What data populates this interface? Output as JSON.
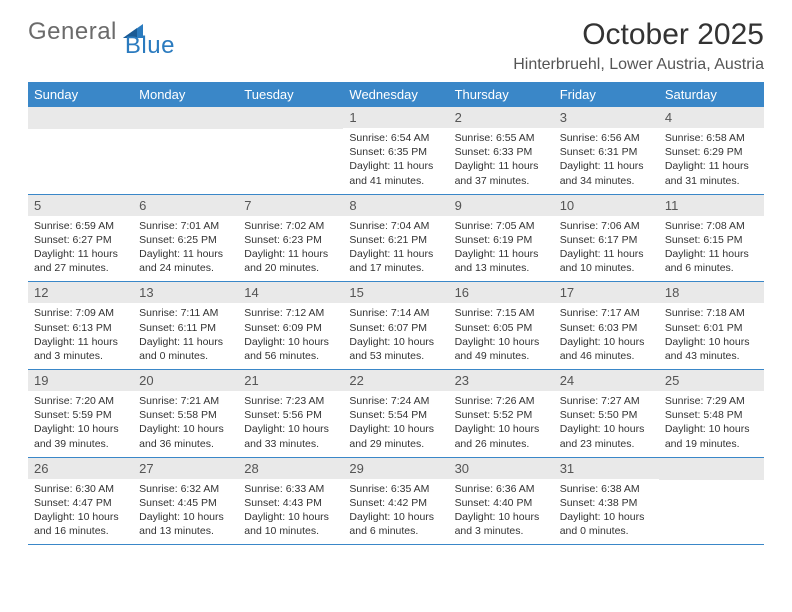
{
  "brand": {
    "part1": "General",
    "part2": "Blue"
  },
  "title": "October 2025",
  "location": "Hinterbruehl, Lower Austria, Austria",
  "colors": {
    "header_bg": "#3a87c8",
    "header_text": "#ffffff",
    "daynum_bg": "#e9e9e9",
    "border": "#3a87c8",
    "brand_gray": "#6b6b6b",
    "brand_blue": "#2b7bbf"
  },
  "weekdays": [
    "Sunday",
    "Monday",
    "Tuesday",
    "Wednesday",
    "Thursday",
    "Friday",
    "Saturday"
  ],
  "weeks": [
    [
      {
        "n": "",
        "lines": [
          "",
          "",
          "",
          ""
        ]
      },
      {
        "n": "",
        "lines": [
          "",
          "",
          "",
          ""
        ]
      },
      {
        "n": "",
        "lines": [
          "",
          "",
          "",
          ""
        ]
      },
      {
        "n": "1",
        "lines": [
          "Sunrise: 6:54 AM",
          "Sunset: 6:35 PM",
          "Daylight: 11 hours",
          "and 41 minutes."
        ]
      },
      {
        "n": "2",
        "lines": [
          "Sunrise: 6:55 AM",
          "Sunset: 6:33 PM",
          "Daylight: 11 hours",
          "and 37 minutes."
        ]
      },
      {
        "n": "3",
        "lines": [
          "Sunrise: 6:56 AM",
          "Sunset: 6:31 PM",
          "Daylight: 11 hours",
          "and 34 minutes."
        ]
      },
      {
        "n": "4",
        "lines": [
          "Sunrise: 6:58 AM",
          "Sunset: 6:29 PM",
          "Daylight: 11 hours",
          "and 31 minutes."
        ]
      }
    ],
    [
      {
        "n": "5",
        "lines": [
          "Sunrise: 6:59 AM",
          "Sunset: 6:27 PM",
          "Daylight: 11 hours",
          "and 27 minutes."
        ]
      },
      {
        "n": "6",
        "lines": [
          "Sunrise: 7:01 AM",
          "Sunset: 6:25 PM",
          "Daylight: 11 hours",
          "and 24 minutes."
        ]
      },
      {
        "n": "7",
        "lines": [
          "Sunrise: 7:02 AM",
          "Sunset: 6:23 PM",
          "Daylight: 11 hours",
          "and 20 minutes."
        ]
      },
      {
        "n": "8",
        "lines": [
          "Sunrise: 7:04 AM",
          "Sunset: 6:21 PM",
          "Daylight: 11 hours",
          "and 17 minutes."
        ]
      },
      {
        "n": "9",
        "lines": [
          "Sunrise: 7:05 AM",
          "Sunset: 6:19 PM",
          "Daylight: 11 hours",
          "and 13 minutes."
        ]
      },
      {
        "n": "10",
        "lines": [
          "Sunrise: 7:06 AM",
          "Sunset: 6:17 PM",
          "Daylight: 11 hours",
          "and 10 minutes."
        ]
      },
      {
        "n": "11",
        "lines": [
          "Sunrise: 7:08 AM",
          "Sunset: 6:15 PM",
          "Daylight: 11 hours",
          "and 6 minutes."
        ]
      }
    ],
    [
      {
        "n": "12",
        "lines": [
          "Sunrise: 7:09 AM",
          "Sunset: 6:13 PM",
          "Daylight: 11 hours",
          "and 3 minutes."
        ]
      },
      {
        "n": "13",
        "lines": [
          "Sunrise: 7:11 AM",
          "Sunset: 6:11 PM",
          "Daylight: 11 hours",
          "and 0 minutes."
        ]
      },
      {
        "n": "14",
        "lines": [
          "Sunrise: 7:12 AM",
          "Sunset: 6:09 PM",
          "Daylight: 10 hours",
          "and 56 minutes."
        ]
      },
      {
        "n": "15",
        "lines": [
          "Sunrise: 7:14 AM",
          "Sunset: 6:07 PM",
          "Daylight: 10 hours",
          "and 53 minutes."
        ]
      },
      {
        "n": "16",
        "lines": [
          "Sunrise: 7:15 AM",
          "Sunset: 6:05 PM",
          "Daylight: 10 hours",
          "and 49 minutes."
        ]
      },
      {
        "n": "17",
        "lines": [
          "Sunrise: 7:17 AM",
          "Sunset: 6:03 PM",
          "Daylight: 10 hours",
          "and 46 minutes."
        ]
      },
      {
        "n": "18",
        "lines": [
          "Sunrise: 7:18 AM",
          "Sunset: 6:01 PM",
          "Daylight: 10 hours",
          "and 43 minutes."
        ]
      }
    ],
    [
      {
        "n": "19",
        "lines": [
          "Sunrise: 7:20 AM",
          "Sunset: 5:59 PM",
          "Daylight: 10 hours",
          "and 39 minutes."
        ]
      },
      {
        "n": "20",
        "lines": [
          "Sunrise: 7:21 AM",
          "Sunset: 5:58 PM",
          "Daylight: 10 hours",
          "and 36 minutes."
        ]
      },
      {
        "n": "21",
        "lines": [
          "Sunrise: 7:23 AM",
          "Sunset: 5:56 PM",
          "Daylight: 10 hours",
          "and 33 minutes."
        ]
      },
      {
        "n": "22",
        "lines": [
          "Sunrise: 7:24 AM",
          "Sunset: 5:54 PM",
          "Daylight: 10 hours",
          "and 29 minutes."
        ]
      },
      {
        "n": "23",
        "lines": [
          "Sunrise: 7:26 AM",
          "Sunset: 5:52 PM",
          "Daylight: 10 hours",
          "and 26 minutes."
        ]
      },
      {
        "n": "24",
        "lines": [
          "Sunrise: 7:27 AM",
          "Sunset: 5:50 PM",
          "Daylight: 10 hours",
          "and 23 minutes."
        ]
      },
      {
        "n": "25",
        "lines": [
          "Sunrise: 7:29 AM",
          "Sunset: 5:48 PM",
          "Daylight: 10 hours",
          "and 19 minutes."
        ]
      }
    ],
    [
      {
        "n": "26",
        "lines": [
          "Sunrise: 6:30 AM",
          "Sunset: 4:47 PM",
          "Daylight: 10 hours",
          "and 16 minutes."
        ]
      },
      {
        "n": "27",
        "lines": [
          "Sunrise: 6:32 AM",
          "Sunset: 4:45 PM",
          "Daylight: 10 hours",
          "and 13 minutes."
        ]
      },
      {
        "n": "28",
        "lines": [
          "Sunrise: 6:33 AM",
          "Sunset: 4:43 PM",
          "Daylight: 10 hours",
          "and 10 minutes."
        ]
      },
      {
        "n": "29",
        "lines": [
          "Sunrise: 6:35 AM",
          "Sunset: 4:42 PM",
          "Daylight: 10 hours",
          "and 6 minutes."
        ]
      },
      {
        "n": "30",
        "lines": [
          "Sunrise: 6:36 AM",
          "Sunset: 4:40 PM",
          "Daylight: 10 hours",
          "and 3 minutes."
        ]
      },
      {
        "n": "31",
        "lines": [
          "Sunrise: 6:38 AM",
          "Sunset: 4:38 PM",
          "Daylight: 10 hours",
          "and 0 minutes."
        ]
      },
      {
        "n": "",
        "lines": [
          "",
          "",
          "",
          ""
        ]
      }
    ]
  ]
}
